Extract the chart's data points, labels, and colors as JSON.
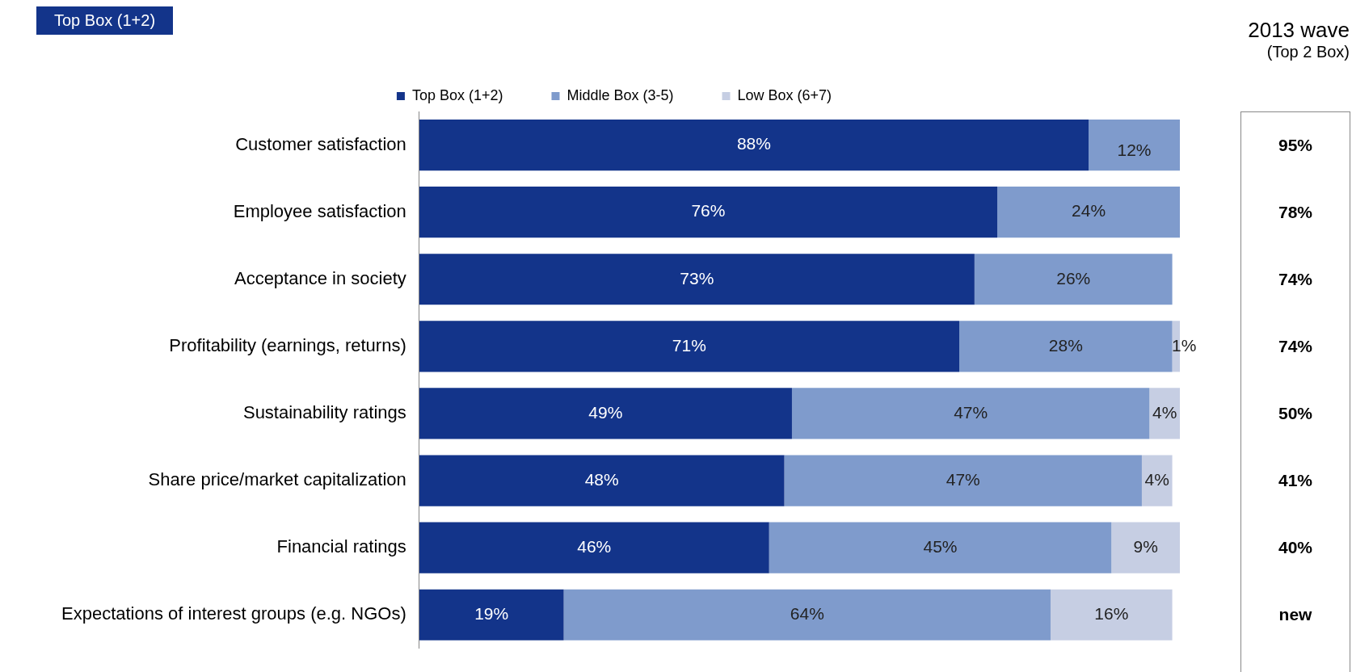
{
  "chart_data": {
    "type": "bar",
    "orientation": "horizontal",
    "stacked": true,
    "legend": "top",
    "tick_labels": "y",
    "grid": false,
    "categories": [
      "Customer satisfaction",
      "Employee satisfaction",
      "Acceptance in society",
      "Profitability (earnings, returns)",
      "Sustainability ratings",
      "Share price/market capitalization",
      "Financial ratings",
      "Expectations of interest groups (e.g. NGOs)"
    ],
    "series": [
      {
        "name": "Top Box (1+2)",
        "color": "#13348a",
        "values": [
          88,
          76,
          73,
          71,
          49,
          48,
          46,
          19
        ],
        "value_labels": [
          "88%",
          "76%",
          "73%",
          "71%",
          "49%",
          "48%",
          "46%",
          "19%"
        ]
      },
      {
        "name": "Middle Box (3-5)",
        "color": "#7f9bcc",
        "values": [
          12,
          24,
          26,
          28,
          47,
          47,
          45,
          64
        ],
        "value_labels": [
          "12%",
          "24%",
          "26%",
          "28%",
          "47%",
          "47%",
          "45%",
          "64%"
        ]
      },
      {
        "name": "Low Box (6+7)",
        "color": "#c6cee3",
        "values": [
          null,
          null,
          null,
          1,
          4,
          4,
          9,
          16
        ],
        "value_labels": [
          null,
          null,
          null,
          "1%",
          "4%",
          "4%",
          "9%",
          "16%"
        ]
      }
    ],
    "annotations": [
      "Top Box (1+2)",
      "2013 wave",
      "(Top 2 Box)",
      "95%",
      "78%",
      "74%",
      "74%",
      "50%",
      "41%",
      "40%",
      "new"
    ]
  }
}
